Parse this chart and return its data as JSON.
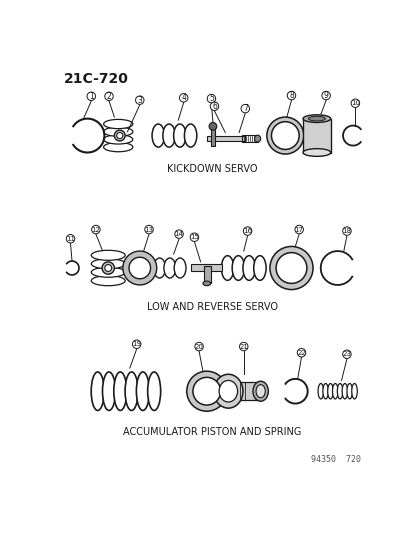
{
  "title": "21C-720",
  "bg_color": "#ffffff",
  "line_color": "#1a1a1a",
  "section1_label": "KICKDOWN SERVO",
  "section2_label": "LOW AND REVERSE SERVO",
  "section3_label": "ACCUMULATOR PISTON AND SPRING",
  "watermark": "94350  720",
  "figsize": [
    4.14,
    5.33
  ],
  "dpi": 100
}
